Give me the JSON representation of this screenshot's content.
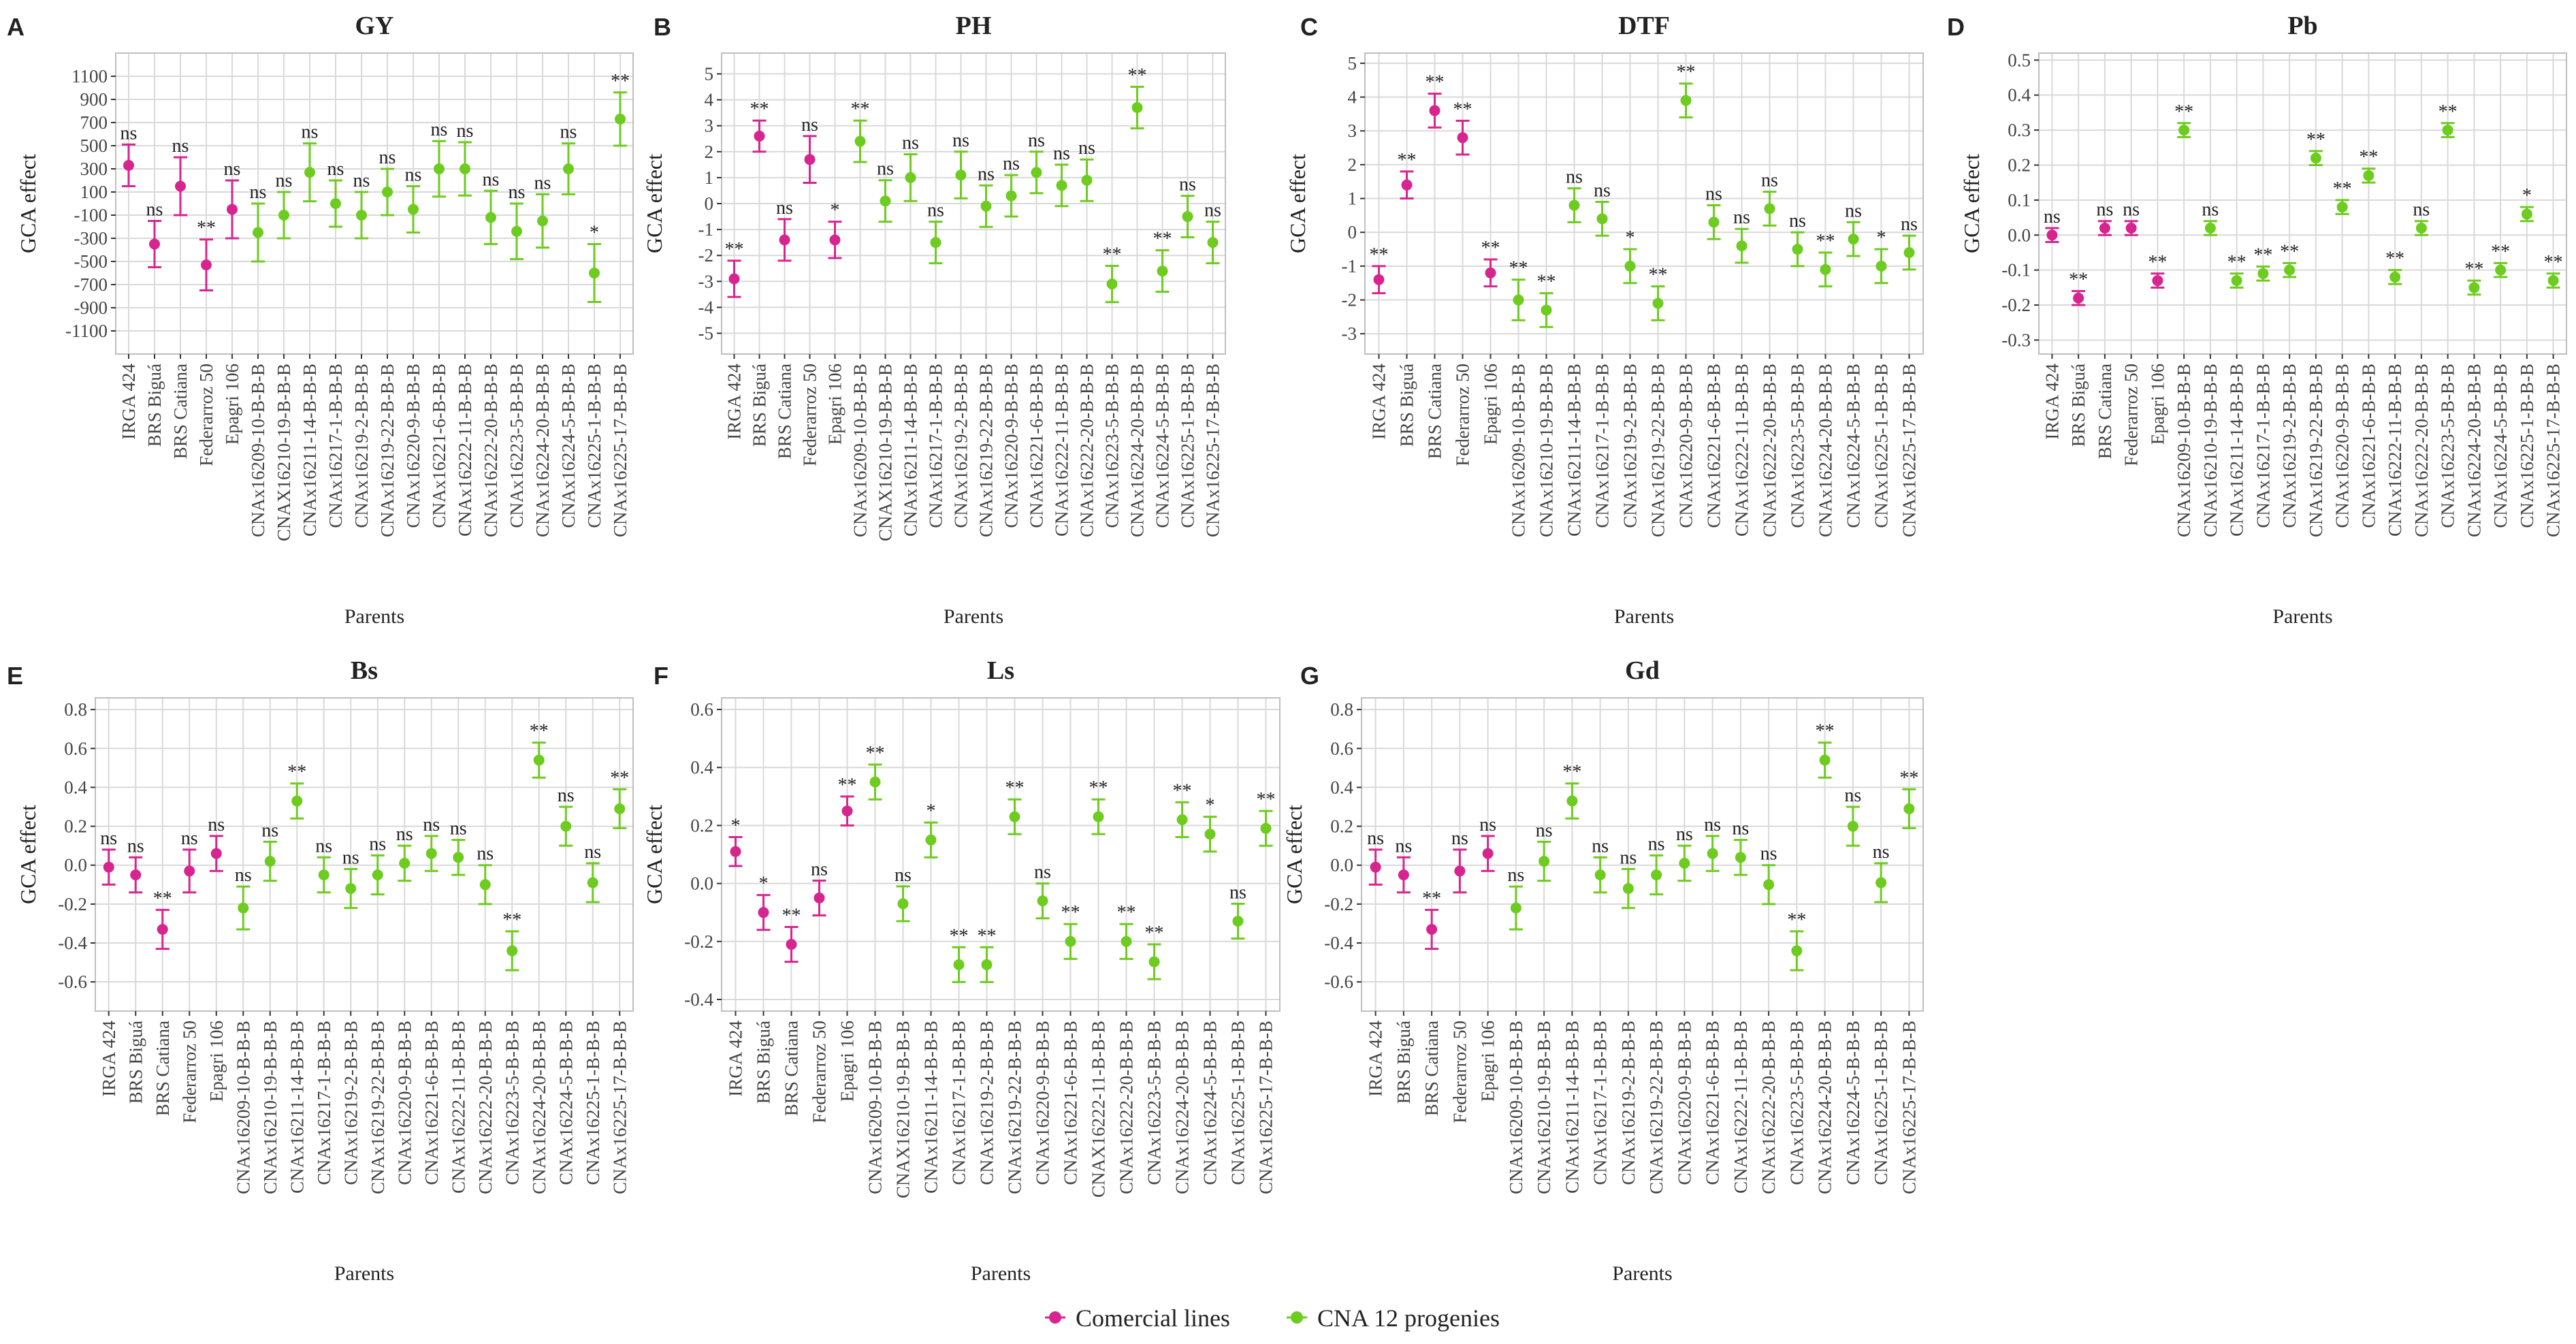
{
  "colors": {
    "comercial": "#d6258f",
    "progenies": "#6ecb1f",
    "grid": "#d9d9d9",
    "axis": "#333333",
    "text": "#222222"
  },
  "x_axis_title": "Parents",
  "y_axis_title": "GCA effect",
  "legend": {
    "items": [
      {
        "label": "Comercial lines",
        "group": 0
      },
      {
        "label": "CNA 12 progenies",
        "group": 1
      }
    ]
  },
  "chart_data": [
    {
      "panel": "A",
      "title": "GY",
      "type": "scatter",
      "xlabel": "Parents",
      "ylabel": "GCA effect",
      "categories": [
        "IRGA 424",
        "BRS Biguá",
        "BRS Catiana",
        "Federarroz 50",
        "Epagri 106",
        "CNAx16209-10-B-B-B",
        "CNAX16210-19-B-B-B",
        "CNAx16211-14-B-B-B",
        "CNAx16217-1-B-B-B",
        "CNAx16219-2-B-B-B",
        "CNAx16219-22-B-B-B",
        "CNAx16220-9-B-B-B",
        "CNAx16221-6-B-B-B",
        "CNAx16222-11-B-B-B",
        "CNAx16222-20-B-B-B",
        "CNAx16223-5-B-B-B",
        "CNAx16224-20-B-B-B",
        "CNAx16224-5-B-B-B",
        "CNAx16225-1-B-B-B",
        "CNAx16225-17-B-B-B"
      ],
      "groups": [
        0,
        0,
        0,
        0,
        0,
        1,
        1,
        1,
        1,
        1,
        1,
        1,
        1,
        1,
        1,
        1,
        1,
        1,
        1,
        1
      ],
      "values": [
        330,
        -350,
        150,
        -530,
        -50,
        -250,
        -100,
        270,
        0,
        -100,
        100,
        -50,
        300,
        300,
        -120,
        -240,
        -150,
        300,
        -600,
        730
      ],
      "lower": [
        150,
        -550,
        -100,
        -750,
        -300,
        -500,
        -300,
        20,
        -200,
        -300,
        -100,
        -250,
        60,
        70,
        -350,
        -480,
        -380,
        80,
        -850,
        500
      ],
      "upper": [
        510,
        -150,
        400,
        -310,
        200,
        0,
        100,
        520,
        200,
        100,
        300,
        150,
        540,
        530,
        110,
        0,
        80,
        520,
        -350,
        960
      ],
      "significance": [
        "ns",
        "ns",
        "ns",
        "**",
        "ns",
        "ns",
        "ns",
        "ns",
        "ns",
        "ns",
        "ns",
        "ns",
        "ns",
        "ns",
        "ns",
        "ns",
        "ns",
        "ns",
        "*",
        "**"
      ],
      "ylim": [
        -1300,
        1300
      ],
      "yticks": [
        -1100,
        -900,
        -700,
        -500,
        -300,
        -100,
        100,
        300,
        500,
        700,
        900,
        1100
      ],
      "ytick_labels": [
        "-1100",
        "-900",
        "-700",
        "-500",
        "-300",
        "-100",
        "100",
        "300",
        "500",
        "700",
        "900",
        "1100"
      ]
    },
    {
      "panel": "B",
      "title": "PH",
      "type": "scatter",
      "xlabel": "Parents",
      "ylabel": "GCA effect",
      "categories": [
        "IRGA 424",
        "BRS Biguá",
        "BRS Catiana",
        "Federarroz 50",
        "Epagri 106",
        "CNAx16209-10-B-B-B",
        "CNAX16210-19-B-B-B",
        "CNAx16211-14-B-B-B",
        "CNAx16217-1-B-B-B",
        "CNAx16219-2-B-B-B",
        "CNAx16219-22-B-B-B",
        "CNAx16220-9-B-B-B",
        "CNAx16221-6-B-B-B",
        "CNAx16222-11-B-B-B",
        "CNAx16222-20-B-B-B",
        "CNAx16223-5-B-B-B",
        "CNAx16224-20-B-B-B",
        "CNAx16224-5-B-B-B",
        "CNAx16225-1-B-B-B",
        "CNAx16225-17-B-B-B"
      ],
      "groups": [
        0,
        0,
        0,
        0,
        0,
        1,
        1,
        1,
        1,
        1,
        1,
        1,
        1,
        1,
        1,
        1,
        1,
        1,
        1,
        1
      ],
      "values": [
        -2.9,
        2.6,
        -1.4,
        1.7,
        -1.4,
        2.4,
        0.1,
        1.0,
        -1.5,
        1.1,
        -0.1,
        0.3,
        1.2,
        0.7,
        0.9,
        -3.1,
        3.7,
        -2.6,
        -0.5,
        -1.5
      ],
      "lower": [
        -3.6,
        2.0,
        -2.2,
        0.8,
        -2.1,
        1.6,
        -0.7,
        0.1,
        -2.3,
        0.2,
        -0.9,
        -0.5,
        0.4,
        -0.1,
        0.1,
        -3.8,
        2.9,
        -3.4,
        -1.3,
        -2.3
      ],
      "upper": [
        -2.2,
        3.2,
        -0.6,
        2.6,
        -0.7,
        3.2,
        0.9,
        1.9,
        -0.7,
        2.0,
        0.7,
        1.1,
        2.0,
        1.5,
        1.7,
        -2.4,
        4.5,
        -1.8,
        0.3,
        -0.7
      ],
      "significance": [
        "**",
        "**",
        "ns",
        "ns",
        "*",
        "**",
        "ns",
        "ns",
        "ns",
        "ns",
        "ns",
        "ns",
        "ns",
        "ns",
        "ns",
        "**",
        "**",
        "**",
        "ns",
        "ns"
      ],
      "ylim": [
        -5.8,
        5.8
      ],
      "yticks": [
        -5,
        -4,
        -3,
        -2,
        -1,
        0,
        1,
        2,
        3,
        4,
        5
      ],
      "ytick_labels": [
        "-5",
        "-4",
        "-3",
        "-2",
        "-1",
        "0",
        "1",
        "2",
        "3",
        "4",
        "5"
      ]
    },
    {
      "panel": "C",
      "title": "DTF",
      "type": "scatter",
      "xlabel": "Parents",
      "ylabel": "GCA effect",
      "categories": [
        "IRGA 424",
        "BRS Biguá",
        "BRS Catiana",
        "Federarroz 50",
        "Epagri 106",
        "CNAx16209-10-B-B-B",
        "CNAx16210-19-B-B-B",
        "CNAx16211-14-B-B-B",
        "CNAx16217-1-B-B-B",
        "CNAx16219-2-B-B-B",
        "CNAx16219-22-B-B-B",
        "CNAx16220-9-B-B-B",
        "CNAx16221-6-B-B-B",
        "CNAx16222-11-B-B-B",
        "CNAx16222-20-B-B-B",
        "CNAx16223-5-B-B-B",
        "CNAx16224-20-B-B-B",
        "CNAx16224-5-B-B-B",
        "CNAx16225-1-B-B-B",
        "CNAx16225-17-B-B-B"
      ],
      "groups": [
        0,
        0,
        0,
        0,
        0,
        1,
        1,
        1,
        1,
        1,
        1,
        1,
        1,
        1,
        1,
        1,
        1,
        1,
        1,
        1
      ],
      "values": [
        -1.4,
        1.4,
        3.6,
        2.8,
        -1.2,
        -2.0,
        -2.3,
        0.8,
        0.4,
        -1.0,
        -2.1,
        3.9,
        0.3,
        -0.4,
        0.7,
        -0.5,
        -1.1,
        -0.2,
        -1.0,
        -0.6
      ],
      "lower": [
        -1.8,
        1.0,
        3.1,
        2.3,
        -1.6,
        -2.6,
        -2.8,
        0.3,
        -0.1,
        -1.5,
        -2.6,
        3.4,
        -0.2,
        -0.9,
        0.2,
        -1.0,
        -1.6,
        -0.7,
        -1.5,
        -1.1
      ],
      "upper": [
        -1.0,
        1.8,
        4.1,
        3.3,
        -0.8,
        -1.4,
        -1.8,
        1.3,
        0.9,
        -0.5,
        -1.6,
        4.4,
        0.8,
        0.1,
        1.2,
        0.0,
        -0.6,
        0.3,
        -0.5,
        -0.1
      ],
      "significance": [
        "**",
        "**",
        "**",
        "**",
        "**",
        "**",
        "**",
        "ns",
        "ns",
        "*",
        "**",
        "**",
        "ns",
        "ns",
        "ns",
        "ns",
        "**",
        "ns",
        "*",
        "ns"
      ],
      "ylim": [
        -3.6,
        5.3
      ],
      "yticks": [
        -3,
        -2,
        -1,
        0,
        1,
        2,
        3,
        4,
        5
      ],
      "ytick_labels": [
        "-3",
        "-2",
        "-1",
        "0",
        "1",
        "2",
        "3",
        "4",
        "5"
      ]
    },
    {
      "panel": "D",
      "title": "Pb",
      "type": "scatter",
      "xlabel": "Parents",
      "ylabel": "GCA effect",
      "categories": [
        "IRGA 424",
        "BRS Biguá",
        "BRS Catiana",
        "Federarroz 50",
        "Epagri 106",
        "CNAx16209-10-B-B-B",
        "CNAx16210-19-B-B-B",
        "CNAx16211-14-B-B-B",
        "CNAx16217-1-B-B-B",
        "CNAx16219-2-B-B-B",
        "CNAx16219-22-B-B-B",
        "CNAx16220-9-B-B-B",
        "CNAx16221-6-B-B-B",
        "CNAx16222-11-B-B-B",
        "CNAx16222-20-B-B-B",
        "CNAx16223-5-B-B-B",
        "CNAx16224-20-B-B-B",
        "CNAx16224-5-B-B-B",
        "CNAx16225-1-B-B-B",
        "CNAx16225-17-B-B-B"
      ],
      "groups": [
        0,
        0,
        0,
        0,
        0,
        1,
        1,
        1,
        1,
        1,
        1,
        1,
        1,
        1,
        1,
        1,
        1,
        1,
        1,
        1
      ],
      "values": [
        0.0,
        -0.18,
        0.02,
        0.02,
        -0.13,
        0.3,
        0.02,
        -0.13,
        -0.11,
        -0.1,
        0.22,
        0.08,
        0.17,
        -0.12,
        0.02,
        0.3,
        -0.15,
        -0.1,
        0.06,
        -0.13
      ],
      "lower": [
        -0.02,
        -0.2,
        0.0,
        0.0,
        -0.15,
        0.28,
        0.0,
        -0.15,
        -0.13,
        -0.12,
        0.2,
        0.06,
        0.15,
        -0.14,
        0.0,
        0.28,
        -0.17,
        -0.12,
        0.04,
        -0.15
      ],
      "upper": [
        0.02,
        -0.16,
        0.04,
        0.04,
        -0.11,
        0.32,
        0.04,
        -0.11,
        -0.09,
        -0.08,
        0.24,
        0.1,
        0.19,
        -0.1,
        0.04,
        0.32,
        -0.13,
        -0.08,
        0.08,
        -0.11
      ],
      "significance": [
        "ns",
        "**",
        "ns",
        "ns",
        "**",
        "**",
        "ns",
        "**",
        "**",
        "**",
        "**",
        "**",
        "**",
        "**",
        "ns",
        "**",
        "**",
        "**",
        "*",
        "**"
      ],
      "ylim": [
        -0.34,
        0.52
      ],
      "yticks": [
        -0.3,
        -0.2,
        -0.1,
        0.0,
        0.1,
        0.2,
        0.3,
        0.4,
        0.5
      ],
      "ytick_labels": [
        "-0.3",
        "-0.2",
        "-0.1",
        "0.0",
        "0.1",
        "0.2",
        "0.3",
        "0.4",
        "0.5"
      ]
    },
    {
      "panel": "E",
      "title": "Bs",
      "type": "scatter",
      "xlabel": "Parents",
      "ylabel": "GCA effect",
      "categories": [
        "IRGA 424",
        "BRS Biguá",
        "BRS Catiana",
        "Federarroz 50",
        "Epagri 106",
        "CNAx16209-10-B-B-B",
        "CNAx16210-19-B-B-B",
        "CNAx16211-14-B-B-B",
        "CNAx16217-1-B-B-B",
        "CNAx16219-2-B-B-B",
        "CNAx16219-22-B-B-B",
        "CNAx16220-9-B-B-B",
        "CNAx16221-6-B-B-B",
        "CNAx16222-11-B-B-B",
        "CNAx16222-20-B-B-B",
        "CNAx16223-5-B-B-B",
        "CNAx16224-20-B-B-B",
        "CNAx16224-5-B-B-B",
        "CNAx16225-1-B-B-B",
        "CNAx16225-17-B-B-B"
      ],
      "groups": [
        0,
        0,
        0,
        0,
        0,
        1,
        1,
        1,
        1,
        1,
        1,
        1,
        1,
        1,
        1,
        1,
        1,
        1,
        1,
        1
      ],
      "values": [
        -0.01,
        -0.05,
        -0.33,
        -0.03,
        0.06,
        -0.22,
        0.02,
        0.33,
        -0.05,
        -0.12,
        -0.05,
        0.01,
        0.06,
        0.04,
        -0.1,
        -0.44,
        0.54,
        0.2,
        -0.09,
        0.29
      ],
      "lower": [
        -0.1,
        -0.14,
        -0.43,
        -0.14,
        -0.03,
        -0.33,
        -0.08,
        0.24,
        -0.14,
        -0.22,
        -0.15,
        -0.08,
        -0.03,
        -0.05,
        -0.2,
        -0.54,
        0.45,
        0.1,
        -0.19,
        0.19
      ],
      "upper": [
        0.08,
        0.04,
        -0.23,
        0.08,
        0.15,
        -0.11,
        0.12,
        0.42,
        0.04,
        -0.02,
        0.05,
        0.1,
        0.15,
        0.13,
        0.0,
        -0.34,
        0.63,
        0.3,
        0.01,
        0.39
      ],
      "significance": [
        "ns",
        "ns",
        "**",
        "ns",
        "ns",
        "ns",
        "ns",
        "**",
        "ns",
        "ns",
        "ns",
        "ns",
        "ns",
        "ns",
        "ns",
        "**",
        "**",
        "ns",
        "ns",
        "**"
      ],
      "ylim": [
        -0.75,
        0.86
      ],
      "yticks": [
        -0.6,
        -0.4,
        -0.2,
        0.0,
        0.2,
        0.4,
        0.6,
        0.8
      ],
      "ytick_labels": [
        "-0.6",
        "-0.4",
        "-0.2",
        "0.0",
        "0.2",
        "0.4",
        "0.6",
        "0.8"
      ]
    },
    {
      "panel": "F",
      "title": "Ls",
      "type": "scatter",
      "xlabel": "Parents",
      "ylabel": "GCA effect",
      "categories": [
        "IRGA 424",
        "BRS Biguá",
        "BRS Catiana",
        "Federarroz 50",
        "Epagri 106",
        "CNAx16209-10-B-B-B",
        "CNAX16210-19-B-B-B",
        "CNAx16211-14-B-B-B",
        "CNAx16217-1-B-B-B",
        "CNAx16219-2-B-B-B",
        "CNAx16219-22-B-B-B",
        "CNAx16220-9-B-B-B",
        "CNAx16221-6-B-B-B",
        "CNAX16222-11-B-B-B",
        "CNAx16222-20-B-B-B",
        "CNAx16223-5-B-B-B",
        "CNAx16224-20-B-B-B",
        "CNAx16224-5-B-B-B",
        "CNAx16225-1-B-B-B",
        "CNAx16225-17-B-B-B"
      ],
      "groups": [
        0,
        0,
        0,
        0,
        0,
        1,
        1,
        1,
        1,
        1,
        1,
        1,
        1,
        1,
        1,
        1,
        1,
        1,
        1,
        1
      ],
      "values": [
        0.11,
        -0.1,
        -0.21,
        -0.05,
        0.25,
        0.35,
        -0.07,
        0.15,
        -0.28,
        -0.28,
        0.23,
        -0.06,
        -0.2,
        0.23,
        -0.2,
        -0.27,
        0.22,
        0.17,
        -0.13,
        0.19
      ],
      "lower": [
        0.06,
        -0.16,
        -0.27,
        -0.11,
        0.2,
        0.29,
        -0.13,
        0.09,
        -0.34,
        -0.34,
        0.17,
        -0.12,
        -0.26,
        0.17,
        -0.26,
        -0.33,
        0.16,
        0.11,
        -0.19,
        0.13
      ],
      "upper": [
        0.16,
        -0.04,
        -0.15,
        0.01,
        0.3,
        0.41,
        -0.01,
        0.21,
        -0.22,
        -0.22,
        0.29,
        0.0,
        -0.14,
        0.29,
        -0.14,
        -0.21,
        0.28,
        0.23,
        -0.07,
        0.25
      ],
      "significance": [
        "*",
        "*",
        "**",
        "ns",
        "**",
        "**",
        "ns",
        "*",
        "**",
        "**",
        "**",
        "ns",
        "**",
        "**",
        "**",
        "**",
        "**",
        "*",
        "ns",
        "**"
      ],
      "ylim": [
        -0.44,
        0.64
      ],
      "yticks": [
        -0.4,
        -0.2,
        0.0,
        0.2,
        0.4,
        0.6
      ],
      "ytick_labels": [
        "-0.4",
        "-0.2",
        "0.0",
        "0.2",
        "0.4",
        "0.6"
      ]
    },
    {
      "panel": "G",
      "title": "Gd",
      "type": "scatter",
      "xlabel": "Parents",
      "ylabel": "GCA effect",
      "categories": [
        "IRGA 424",
        "BRS Biguá",
        "BRS Catiana",
        "Federarroz 50",
        "Epagri 106",
        "CNAx16209-10-B-B-B",
        "CNAx16210-19-B-B-B",
        "CNAx16211-14-B-B-B",
        "CNAx16217-1-B-B-B",
        "CNAx16219-2-B-B-B",
        "CNAx16219-22-B-B-B",
        "CNAx16220-9-B-B-B",
        "CNAx16221-6-B-B-B",
        "CNAx16222-11-B-B-B",
        "CNAx16222-20-B-B-B",
        "CNAx16223-5-B-B-B",
        "CNAx16224-20-B-B-B",
        "CNAx16224-5-B-B-B",
        "CNAx16225-1-B-B-B",
        "CNAx16225-17-B-B-B"
      ],
      "groups": [
        0,
        0,
        0,
        0,
        0,
        1,
        1,
        1,
        1,
        1,
        1,
        1,
        1,
        1,
        1,
        1,
        1,
        1,
        1,
        1
      ],
      "values": [
        -0.01,
        -0.05,
        -0.33,
        -0.03,
        0.06,
        -0.22,
        0.02,
        0.33,
        -0.05,
        -0.12,
        -0.05,
        0.01,
        0.06,
        0.04,
        -0.1,
        -0.44,
        0.54,
        0.2,
        -0.09,
        0.29
      ],
      "lower": [
        -0.1,
        -0.14,
        -0.43,
        -0.14,
        -0.03,
        -0.33,
        -0.08,
        0.24,
        -0.14,
        -0.22,
        -0.15,
        -0.08,
        -0.03,
        -0.05,
        -0.2,
        -0.54,
        0.45,
        0.1,
        -0.19,
        0.19
      ],
      "upper": [
        0.08,
        0.04,
        -0.23,
        0.08,
        0.15,
        -0.11,
        0.12,
        0.42,
        0.04,
        -0.02,
        0.05,
        0.1,
        0.15,
        0.13,
        0.0,
        -0.34,
        0.63,
        0.3,
        0.01,
        0.39
      ],
      "significance": [
        "ns",
        "ns",
        "**",
        "ns",
        "ns",
        "ns",
        "ns",
        "**",
        "ns",
        "ns",
        "ns",
        "ns",
        "ns",
        "ns",
        "ns",
        "**",
        "**",
        "ns",
        "ns",
        "**"
      ],
      "ylim": [
        -0.75,
        0.86
      ],
      "yticks": [
        -0.6,
        -0.4,
        -0.2,
        0.0,
        0.2,
        0.4,
        0.6,
        0.8
      ],
      "ytick_labels": [
        "-0.6",
        "-0.4",
        "-0.2",
        "0.0",
        "0.2",
        "0.4",
        "0.6",
        "0.8"
      ]
    }
  ]
}
